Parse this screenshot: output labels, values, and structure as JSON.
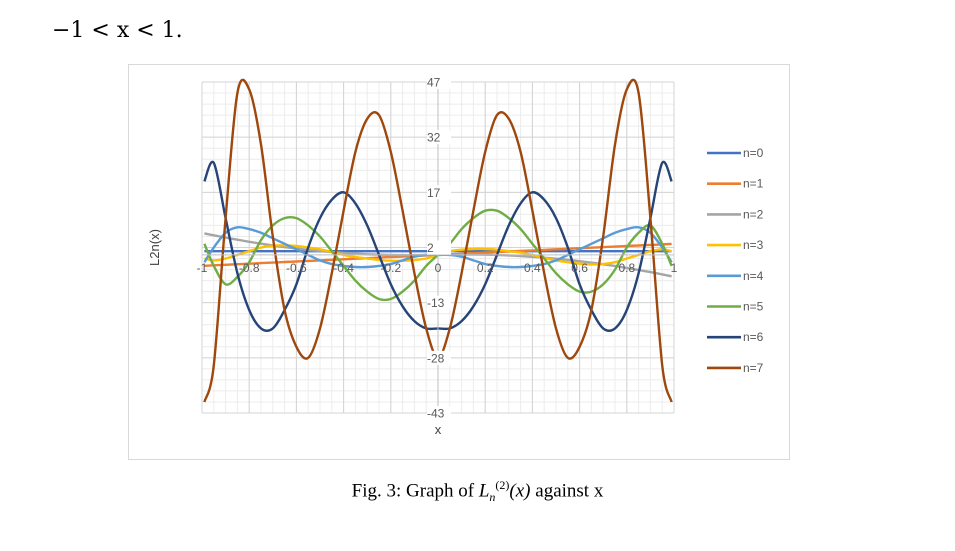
{
  "heading": "−1 < x < 1.",
  "caption": {
    "prefix": "Fig. 3: Graph of ",
    "func": "L",
    "sub": "n",
    "sup": "(2)",
    "arg": "(x)",
    "suffix": " against x"
  },
  "chart_data": {
    "type": "line",
    "title": "",
    "xlabel": "x",
    "ylabel": "L2n(x)",
    "xlim": [
      -1,
      1
    ],
    "ylim": [
      -43,
      47
    ],
    "xticks": [
      "-1",
      "-0.8",
      "-0.6",
      "-0.4",
      "-0.2",
      "0",
      "0.2",
      "0.4",
      "0.6",
      "0.8",
      "1"
    ],
    "yticks": [
      "47",
      "32",
      "17",
      "2",
      "-13",
      "-28",
      "-43"
    ],
    "grid": true,
    "legend_position": "right",
    "x": [
      -0.99,
      -0.95,
      -0.9,
      -0.85,
      -0.8,
      -0.75,
      -0.7,
      -0.65,
      -0.6,
      -0.55,
      -0.5,
      -0.45,
      -0.4,
      -0.35,
      -0.3,
      -0.25,
      -0.2,
      -0.15,
      -0.1,
      -0.05,
      0,
      0.05,
      0.1,
      0.15,
      0.2,
      0.25,
      0.3,
      0.35,
      0.4,
      0.45,
      0.5,
      0.55,
      0.6,
      0.65,
      0.7,
      0.75,
      0.8,
      0.85,
      0.9,
      0.95,
      0.99
    ],
    "series": [
      {
        "name": "n=0",
        "color": "#4472c4",
        "values": [
          1,
          1,
          1,
          1,
          1,
          1,
          1,
          1,
          1,
          1,
          1,
          1,
          1,
          1,
          1,
          1,
          1,
          1,
          1,
          1,
          1,
          1,
          1,
          1,
          1,
          1,
          1,
          1,
          1,
          1,
          1,
          1,
          1,
          1,
          1,
          1,
          1,
          1,
          1,
          1,
          1
        ]
      },
      {
        "name": "n=1",
        "color": "#ed7d31",
        "values": [
          -2.97,
          -2.85,
          -2.7,
          -2.55,
          -2.4,
          -2.25,
          -2.1,
          -1.95,
          -1.8,
          -1.65,
          -1.5,
          -1.35,
          -1.2,
          -1.05,
          -0.9,
          -0.75,
          -0.6,
          -0.45,
          -0.3,
          -0.15,
          0,
          0.15,
          0.3,
          0.45,
          0.6,
          0.75,
          0.9,
          1.05,
          1.2,
          1.35,
          1.5,
          1.65,
          1.8,
          1.95,
          2.1,
          2.25,
          2.4,
          2.55,
          2.7,
          2.85,
          2.97
        ]
      },
      {
        "name": "n=2",
        "color": "#a5a5a5",
        "values": [
          5.84,
          5.32,
          4.7,
          4.12,
          3.56,
          3.04,
          2.56,
          2.12,
          1.72,
          1.36,
          1.04,
          0.76,
          0.52,
          0.32,
          0.16,
          0.04,
          -0.04,
          -0.08,
          -0.08,
          -0.04,
          0,
          0.04,
          0.08,
          0.08,
          0.04,
          -0.04,
          -0.16,
          -0.32,
          -0.52,
          -0.76,
          -1.04,
          -1.36,
          -1.72,
          -2.12,
          -2.56,
          -3.04,
          -3.56,
          -4.12,
          -4.7,
          -5.32,
          -5.84
        ]
      },
      {
        "name": "n=3",
        "color": "#ffc000",
        "values": [
          -1,
          -1.5,
          -1,
          0,
          1,
          2,
          2.5,
          2.6,
          2.4,
          2,
          1.5,
          0.8,
          0,
          -0.6,
          -1,
          -1.4,
          -1.6,
          -1.6,
          -1.4,
          -1,
          0,
          1,
          1.4,
          1.6,
          1.6,
          1.4,
          1,
          0.6,
          0,
          -0.8,
          -1.5,
          -2,
          -2.4,
          -2.6,
          -2.5,
          -2,
          -1,
          0,
          1,
          1.5,
          1
        ]
      },
      {
        "name": "n=4",
        "color": "#5b9bd5",
        "values": [
          -2,
          2,
          6,
          7.5,
          7,
          6,
          4.5,
          3,
          1.5,
          0,
          -1.5,
          -2.5,
          -3,
          -3.3,
          -3.3,
          -3,
          -2.5,
          -1.5,
          -0.5,
          0,
          0,
          0,
          -0.5,
          -1.5,
          -2.5,
          -3,
          -3.3,
          -3.3,
          -3,
          -2.5,
          -1.5,
          0,
          1.5,
          3,
          4.5,
          6,
          7,
          7.5,
          6,
          2,
          -2
        ]
      },
      {
        "name": "n=5",
        "color": "#70ad47",
        "values": [
          3,
          -3,
          -8,
          -6,
          -2,
          4,
          8,
          10,
          10,
          8,
          5,
          1,
          -3,
          -7,
          -10,
          -12,
          -12,
          -10,
          -7,
          -3,
          0,
          3,
          7,
          10,
          12,
          12,
          10,
          7,
          3,
          -1,
          -5,
          -8,
          -10,
          -10,
          -8,
          -4,
          2,
          6,
          8,
          3,
          -3
        ]
      },
      {
        "name": "n=6",
        "color": "#264478",
        "values": [
          20,
          25,
          10,
          -5,
          -15,
          -20,
          -20,
          -15,
          -8,
          2,
          10,
          15,
          17,
          14,
          8,
          0,
          -8,
          -14,
          -18,
          -20,
          -20,
          -20,
          -18,
          -14,
          -8,
          0,
          8,
          14,
          17,
          15,
          10,
          2,
          -8,
          -15,
          -20,
          -20,
          -15,
          -5,
          10,
          25,
          20
        ]
      },
      {
        "name": "n=7",
        "color": "#9e480e",
        "values": [
          -40,
          -30,
          10,
          44,
          45,
          30,
          5,
          -15,
          -25,
          -28,
          -20,
          -5,
          12,
          28,
          37,
          38,
          28,
          12,
          -5,
          -20,
          -28,
          -20,
          -5,
          12,
          28,
          38,
          37,
          28,
          12,
          -5,
          -20,
          -28,
          -25,
          -15,
          5,
          30,
          45,
          44,
          10,
          -30,
          -40
        ]
      }
    ]
  }
}
